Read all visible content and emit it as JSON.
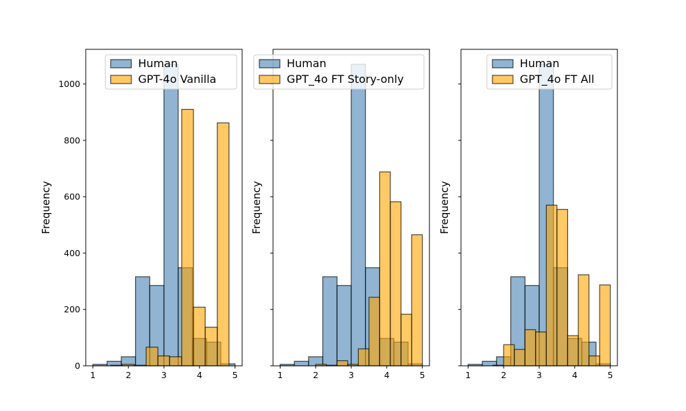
{
  "chart_data": [
    {
      "type": "bar",
      "panel": "left",
      "ylabel": "Frequency",
      "xlim": [
        0.8,
        5.2
      ],
      "ylim": [
        0,
        1123
      ],
      "xticks": [
        1,
        2,
        3,
        4,
        5
      ],
      "yticks": [
        0,
        200,
        400,
        600,
        800,
        1000
      ],
      "show_ytick_labels": true,
      "legend_position": "top-right",
      "series": [
        {
          "name": "Human",
          "color": "#4682b4",
          "bins": [
            {
              "x0": 1.0,
              "x1": 1.4,
              "value": 5
            },
            {
              "x0": 1.4,
              "x1": 1.8,
              "value": 16
            },
            {
              "x0": 1.8,
              "x1": 2.2,
              "value": 32
            },
            {
              "x0": 2.2,
              "x1": 2.6,
              "value": 316
            },
            {
              "x0": 2.6,
              "x1": 3.0,
              "value": 285
            },
            {
              "x0": 3.0,
              "x1": 3.4,
              "value": 1070
            },
            {
              "x0": 3.4,
              "x1": 3.8,
              "value": 348
            },
            {
              "x0": 3.8,
              "x1": 4.2,
              "value": 97
            },
            {
              "x0": 4.2,
              "x1": 4.6,
              "value": 84
            },
            {
              "x0": 4.6,
              "x1": 5.0,
              "value": 7
            }
          ]
        },
        {
          "name": "GPT-4o Vanilla",
          "color": "#ffa500",
          "bins": [
            {
              "x0": 1.5,
              "x1": 1.83,
              "value": 2
            },
            {
              "x0": 1.83,
              "x1": 2.16,
              "value": 5
            },
            {
              "x0": 2.16,
              "x1": 2.5,
              "value": 2
            },
            {
              "x0": 2.5,
              "x1": 2.83,
              "value": 66
            },
            {
              "x0": 2.83,
              "x1": 3.16,
              "value": 35
            },
            {
              "x0": 3.16,
              "x1": 3.5,
              "value": 32
            },
            {
              "x0": 3.5,
              "x1": 3.83,
              "value": 910
            },
            {
              "x0": 3.83,
              "x1": 4.16,
              "value": 208
            },
            {
              "x0": 4.16,
              "x1": 4.5,
              "value": 137
            },
            {
              "x0": 4.5,
              "x1": 4.83,
              "value": 862
            }
          ]
        }
      ]
    },
    {
      "type": "bar",
      "panel": "middle",
      "ylabel": "Frequency",
      "xlim": [
        0.8,
        5.2
      ],
      "ylim": [
        0,
        1123
      ],
      "xticks": [
        1,
        2,
        3,
        4,
        5
      ],
      "yticks": [
        0,
        200,
        400,
        600,
        800,
        1000
      ],
      "show_ytick_labels": false,
      "legend_position": "top-right",
      "series": [
        {
          "name": "Human",
          "color": "#4682b4",
          "bins": [
            {
              "x0": 1.0,
              "x1": 1.4,
              "value": 5
            },
            {
              "x0": 1.4,
              "x1": 1.8,
              "value": 16
            },
            {
              "x0": 1.8,
              "x1": 2.2,
              "value": 32
            },
            {
              "x0": 2.2,
              "x1": 2.6,
              "value": 316
            },
            {
              "x0": 2.6,
              "x1": 3.0,
              "value": 285
            },
            {
              "x0": 3.0,
              "x1": 3.4,
              "value": 1070
            },
            {
              "x0": 3.4,
              "x1": 3.8,
              "value": 348
            },
            {
              "x0": 3.8,
              "x1": 4.2,
              "value": 97
            },
            {
              "x0": 4.2,
              "x1": 4.6,
              "value": 84
            },
            {
              "x0": 4.6,
              "x1": 5.0,
              "value": 7
            }
          ]
        },
        {
          "name": "GPT_4o FT Story-only",
          "color": "#ffa500",
          "bins": [
            {
              "x0": 2.0,
              "x1": 2.3,
              "value": 5
            },
            {
              "x0": 2.3,
              "x1": 2.6,
              "value": 2
            },
            {
              "x0": 2.6,
              "x1": 2.9,
              "value": 18
            },
            {
              "x0": 2.9,
              "x1": 3.2,
              "value": 5
            },
            {
              "x0": 3.2,
              "x1": 3.5,
              "value": 60
            },
            {
              "x0": 3.5,
              "x1": 3.8,
              "value": 243
            },
            {
              "x0": 3.8,
              "x1": 4.1,
              "value": 688
            },
            {
              "x0": 4.1,
              "x1": 4.4,
              "value": 582
            },
            {
              "x0": 4.4,
              "x1": 4.7,
              "value": 183
            },
            {
              "x0": 4.7,
              "x1": 5.0,
              "value": 465
            }
          ]
        }
      ]
    },
    {
      "type": "bar",
      "panel": "right",
      "ylabel": "Frequency",
      "xlim": [
        0.8,
        5.2
      ],
      "ylim": [
        0,
        1123
      ],
      "xticks": [
        1,
        2,
        3,
        4,
        5
      ],
      "yticks": [
        0,
        200,
        400,
        600,
        800,
        1000
      ],
      "show_ytick_labels": false,
      "legend_position": "top-right",
      "series": [
        {
          "name": "Human",
          "color": "#4682b4",
          "bins": [
            {
              "x0": 1.0,
              "x1": 1.4,
              "value": 5
            },
            {
              "x0": 1.4,
              "x1": 1.8,
              "value": 16
            },
            {
              "x0": 1.8,
              "x1": 2.2,
              "value": 32
            },
            {
              "x0": 2.2,
              "x1": 2.6,
              "value": 316
            },
            {
              "x0": 2.6,
              "x1": 3.0,
              "value": 285
            },
            {
              "x0": 3.0,
              "x1": 3.4,
              "value": 1070
            },
            {
              "x0": 3.4,
              "x1": 3.8,
              "value": 348
            },
            {
              "x0": 3.8,
              "x1": 4.2,
              "value": 97
            },
            {
              "x0": 4.2,
              "x1": 4.6,
              "value": 84
            },
            {
              "x0": 4.6,
              "x1": 5.0,
              "value": 7
            }
          ]
        },
        {
          "name": "GPT_4o FT All",
          "color": "#ffa500",
          "bins": [
            {
              "x0": 1.7,
              "x1": 2.0,
              "value": 2
            },
            {
              "x0": 2.0,
              "x1": 2.3,
              "value": 75
            },
            {
              "x0": 2.3,
              "x1": 2.6,
              "value": 58
            },
            {
              "x0": 2.6,
              "x1": 2.9,
              "value": 128
            },
            {
              "x0": 2.9,
              "x1": 3.2,
              "value": 120
            },
            {
              "x0": 3.2,
              "x1": 3.5,
              "value": 570
            },
            {
              "x0": 3.5,
              "x1": 3.8,
              "value": 555
            },
            {
              "x0": 3.8,
              "x1": 4.1,
              "value": 107
            },
            {
              "x0": 4.1,
              "x1": 4.4,
              "value": 323
            },
            {
              "x0": 4.4,
              "x1": 4.7,
              "value": 35
            },
            {
              "x0": 4.7,
              "x1": 5.0,
              "value": 287
            }
          ]
        }
      ]
    }
  ]
}
